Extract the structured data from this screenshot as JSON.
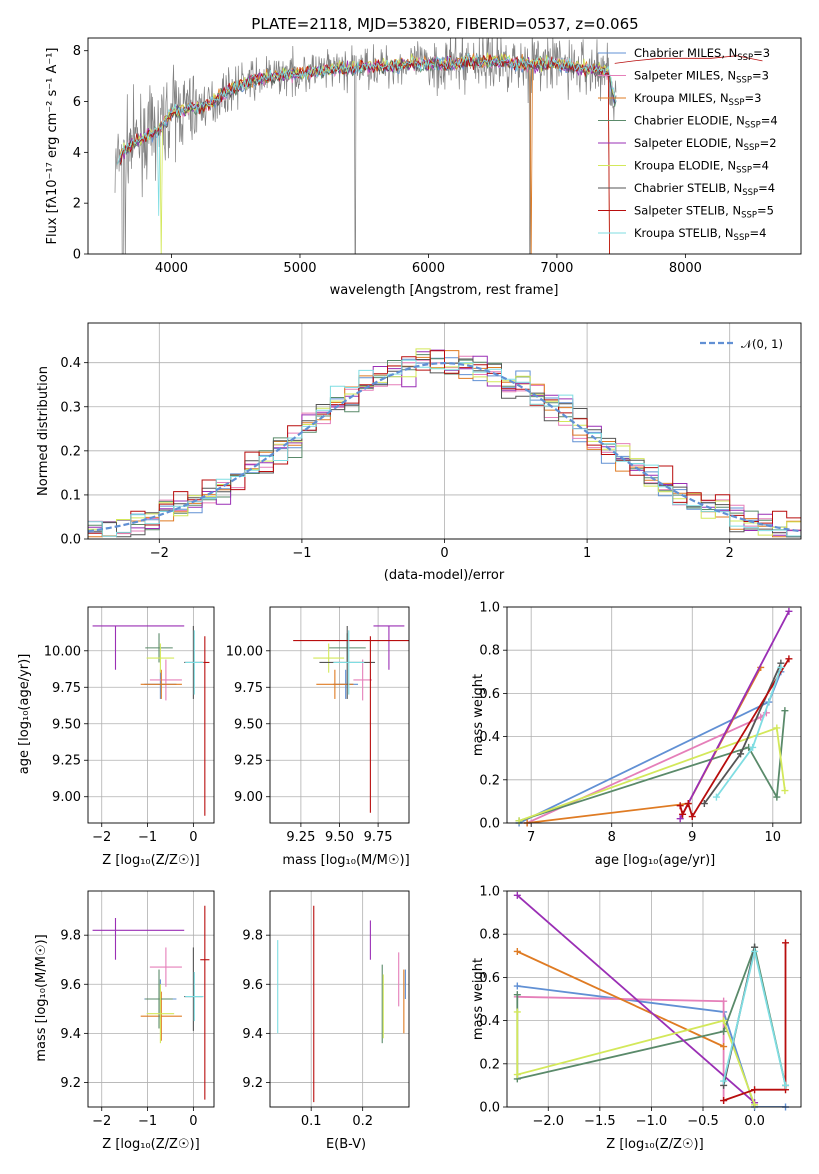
{
  "title": "PLATE=2118, MJD=53820, FIBERID=0537, z=0.065",
  "colors": [
    "#6190d4",
    "#e57fb9",
    "#df7b23",
    "#5a8a6a",
    "#9a2fb5",
    "#d3e85a",
    "#555555",
    "#b80d0d",
    "#7fdde2"
  ],
  "legend": [
    {
      "pre": "Chabrier MILES, N",
      "sub": "SSP",
      "post": "=3"
    },
    {
      "pre": "Salpeter MILES, N",
      "sub": "SSP",
      "post": "=3"
    },
    {
      "pre": "Kroupa MILES, N",
      "sub": "SSP",
      "post": "=3"
    },
    {
      "pre": "Chabrier ELODIE, N",
      "sub": "SSP",
      "post": "=4"
    },
    {
      "pre": "Salpeter ELODIE, N",
      "sub": "SSP",
      "post": "=2"
    },
    {
      "pre": "Kroupa ELODIE, N",
      "sub": "SSP",
      "post": "=4"
    },
    {
      "pre": "Chabrier STELIB, N",
      "sub": "SSP",
      "post": "=4"
    },
    {
      "pre": "Salpeter STELIB, N",
      "sub": "SSP",
      "post": "=5"
    },
    {
      "pre": "Kroupa STELIB, N",
      "sub": "SSP",
      "post": "=4"
    }
  ],
  "labels": {
    "p1_x": "wavelength [Angstrom, rest frame]",
    "p1_y": "Flux [fλ10⁻¹⁷ erg cm⁻² s⁻¹ A⁻¹]",
    "p2_x": "(data-model)/error",
    "p2_y": "Normed distribution",
    "p2_legend": "𝒩(0, 1)",
    "z_x": "Z [log₁₀(Z/Z☉)]",
    "age_y": "age  [log₁₀(age/yr)]",
    "mass_x": "mass [log₁₀(M/M☉)]",
    "age_x": "age  [log₁₀(age/yr)]",
    "mw_y": "mass weight",
    "mass_y": "mass [log₁₀(M/M☉)]",
    "ebv_x": "E(B-V)"
  },
  "chart_data": [
    {
      "id": "spectrum",
      "type": "line",
      "xlabel": "wavelength [Angstrom, rest frame]",
      "ylabel": "Flux [fλ10⁻¹⁷ erg cm⁻² s⁻¹ A⁻¹]",
      "xlim": [
        3350,
        8900
      ],
      "ylim": [
        0,
        8.5
      ],
      "xticks": [
        4000,
        5000,
        6000,
        7000,
        8000
      ],
      "yticks": [
        0,
        2,
        4,
        6,
        8
      ],
      "x": [
        3550,
        3600,
        3700,
        3800,
        3900,
        4000,
        4100,
        4200,
        4300,
        4400,
        4500,
        4600,
        4700,
        4800,
        4900,
        5000,
        5100,
        5200,
        5300,
        5400,
        5500,
        5600,
        5700,
        5800,
        5900,
        6000,
        6100,
        6200,
        6300,
        6400,
        6500,
        6600,
        6700,
        6800,
        6900,
        7000,
        7100,
        7200,
        7300,
        7400,
        7450
      ],
      "y": [
        3.0,
        3.9,
        4.4,
        4.6,
        4.9,
        5.6,
        5.7,
        5.8,
        5.9,
        6.3,
        6.6,
        6.8,
        6.9,
        7.0,
        7.1,
        7.1,
        7.2,
        7.2,
        7.3,
        7.3,
        7.4,
        7.4,
        7.4,
        7.5,
        7.5,
        7.5,
        7.5,
        7.5,
        7.6,
        7.6,
        7.6,
        7.6,
        7.5,
        7.5,
        7.5,
        7.5,
        7.4,
        7.3,
        7.3,
        7.2,
        6.0
      ],
      "continuum_x": [
        7450,
        7600,
        7800,
        8000,
        8200,
        8400,
        8600
      ],
      "continuum_y": [
        7.5,
        7.6,
        7.7,
        7.7,
        7.7,
        7.8,
        7.6
      ]
    },
    {
      "id": "residuals",
      "type": "bar",
      "xlabel": "(data-model)/error",
      "ylabel": "Normed distribution",
      "xlim": [
        -2.5,
        2.5
      ],
      "ylim": [
        0,
        0.49
      ],
      "xticks": [
        -2,
        -1,
        0,
        1,
        2
      ],
      "yticks": [
        0.0,
        0.1,
        0.2,
        0.3,
        0.4
      ],
      "bin_width": 0.1,
      "curve": "N(0,1)"
    },
    {
      "id": "age_vs_Z",
      "type": "scatter",
      "xlabel": "Z [log₁₀(Z/Z☉)]",
      "ylabel": "age  [log₁₀(age/yr)]",
      "xlim": [
        -2.3,
        0.45
      ],
      "ylim": [
        8.82,
        10.3
      ],
      "xticks": [
        -2,
        -1,
        0
      ],
      "yticks": [
        9.0,
        9.25,
        9.5,
        9.75,
        10.0
      ],
      "points": [
        {
          "x": -0.72,
          "y": 9.77,
          "xerr": [
            0.35,
            0.35
          ],
          "yerr": [
            0.1,
            0.1
          ],
          "c": 0
        },
        {
          "x": -0.6,
          "y": 9.8,
          "xerr": [
            0.35,
            0.35
          ],
          "yerr": [
            0.14,
            0.14
          ],
          "c": 1
        },
        {
          "x": -0.7,
          "y": 9.77,
          "xerr": [
            0.45,
            0.45
          ],
          "yerr": [
            0.1,
            0.1
          ],
          "c": 2
        },
        {
          "x": -0.75,
          "y": 10.02,
          "xerr": [
            0.3,
            0.3
          ],
          "yerr": [
            0.1,
            0.1
          ],
          "c": 3
        },
        {
          "x": -1.7,
          "y": 10.17,
          "xerr": [
            0.5,
            1.5
          ],
          "yerr": [
            0.3,
            0.0
          ],
          "c": 4
        },
        {
          "x": -0.72,
          "y": 9.95,
          "xerr": [
            0.3,
            0.3
          ],
          "yerr": [
            0.1,
            0.1
          ],
          "c": 5
        },
        {
          "x": 0.0,
          "y": 9.92,
          "xerr": [
            0.2,
            0.2
          ],
          "yerr": [
            0.25,
            0.25
          ],
          "c": 6
        },
        {
          "x": 0.25,
          "y": 9.92,
          "xerr": [
            0.1,
            0.1
          ],
          "yerr": [
            1.05,
            0.18
          ],
          "c": 7
        },
        {
          "x": 0.02,
          "y": 9.92,
          "xerr": [
            0.2,
            0.2
          ],
          "yerr": [
            0.22,
            0.22
          ],
          "c": 8
        }
      ]
    },
    {
      "id": "age_vs_mass",
      "type": "scatter",
      "xlabel": "mass [log₁₀(M/M☉)]",
      "ylabel": "",
      "xlim": [
        9.05,
        9.95
      ],
      "ylim": [
        8.82,
        10.3
      ],
      "xticks": [
        9.25,
        9.5,
        9.75
      ],
      "yticks": [
        9.0,
        9.25,
        9.5,
        9.75,
        10.0
      ],
      "points": [
        {
          "x": 9.54,
          "y": 9.77,
          "xerr": [
            0.08,
            0.08
          ],
          "yerr": [
            0.1,
            0.1
          ],
          "c": 0
        },
        {
          "x": 9.65,
          "y": 9.8,
          "xerr": [
            0.06,
            0.06
          ],
          "yerr": [
            0.14,
            0.14
          ],
          "c": 1
        },
        {
          "x": 9.47,
          "y": 9.77,
          "xerr": [
            0.12,
            0.12
          ],
          "yerr": [
            0.1,
            0.1
          ],
          "c": 2
        },
        {
          "x": 9.55,
          "y": 10.02,
          "xerr": [
            0.12,
            0.12
          ],
          "yerr": [
            0.1,
            0.1
          ],
          "c": 3
        },
        {
          "x": 9.82,
          "y": 10.17,
          "xerr": [
            0.1,
            0.1
          ],
          "yerr": [
            0.3,
            0.0
          ],
          "c": 4
        },
        {
          "x": 9.43,
          "y": 9.95,
          "xerr": [
            0.1,
            0.1
          ],
          "yerr": [
            0.1,
            0.1
          ],
          "c": 5
        },
        {
          "x": 9.55,
          "y": 9.92,
          "xerr": [
            0.18,
            0.18
          ],
          "yerr": [
            0.25,
            0.25
          ],
          "c": 6
        },
        {
          "x": 9.7,
          "y": 10.07,
          "xerr": [
            0.5,
            0.5
          ],
          "yerr": [
            1.18,
            0.03
          ],
          "c": 7
        },
        {
          "x": 9.56,
          "y": 9.92,
          "xerr": [
            0.1,
            0.1
          ],
          "yerr": [
            0.22,
            0.22
          ],
          "c": 8
        }
      ]
    },
    {
      "id": "massweight_vs_age",
      "type": "line",
      "xlabel": "age  [log₁₀(age/yr)]",
      "ylabel": "mass weight",
      "xlim": [
        6.7,
        10.35
      ],
      "ylim": [
        0,
        1.0
      ],
      "xticks": [
        7,
        8,
        9,
        10
      ],
      "yticks": [
        0.0,
        0.2,
        0.4,
        0.6,
        0.8,
        1.0
      ],
      "series": [
        {
          "c": 0,
          "x": [
            6.85,
            9.95,
            10.1
          ],
          "y": [
            0.0,
            0.56,
            0.7
          ]
        },
        {
          "c": 1,
          "x": [
            6.95,
            9.85,
            9.92
          ],
          "y": [
            0.0,
            0.49,
            0.51
          ]
        },
        {
          "c": 2,
          "x": [
            6.95,
            8.95,
            9.85
          ],
          "y": [
            0.0,
            0.09,
            0.72
          ]
        },
        {
          "c": 3,
          "x": [
            6.85,
            9.7,
            10.05,
            10.15
          ],
          "y": [
            0.01,
            0.35,
            0.12,
            0.52
          ]
        },
        {
          "c": 4,
          "x": [
            8.85,
            10.2
          ],
          "y": [
            0.02,
            0.98
          ]
        },
        {
          "c": 5,
          "x": [
            6.85,
            10.05,
            10.15
          ],
          "y": [
            0.01,
            0.44,
            0.15
          ]
        },
        {
          "c": 6,
          "x": [
            9.15,
            9.6,
            10.1
          ],
          "y": [
            0.09,
            0.32,
            0.74
          ]
        },
        {
          "c": 7,
          "x": [
            8.85,
            8.88,
            8.95,
            9.0,
            10.2
          ],
          "y": [
            0.08,
            0.04,
            0.09,
            0.03,
            0.76
          ]
        },
        {
          "c": 8,
          "x": [
            9.3,
            9.75,
            10.1
          ],
          "y": [
            0.12,
            0.35,
            0.72
          ]
        }
      ]
    },
    {
      "id": "mass_vs_Z",
      "type": "scatter",
      "xlabel": "Z [log₁₀(Z/Z☉)]",
      "ylabel": "mass [log₁₀(M/M☉)]",
      "xlim": [
        -2.3,
        0.45
      ],
      "ylim": [
        9.1,
        9.98
      ],
      "xticks": [
        -2,
        -1,
        0
      ],
      "yticks": [
        9.2,
        9.4,
        9.6,
        9.8
      ],
      "points": [
        {
          "x": -0.72,
          "y": 9.54,
          "xerr": [
            0.35,
            0.35
          ],
          "yerr": [
            0.08,
            0.08
          ],
          "c": 0
        },
        {
          "x": -0.6,
          "y": 9.67,
          "xerr": [
            0.35,
            0.35
          ],
          "yerr": [
            0.08,
            0.08
          ],
          "c": 1
        },
        {
          "x": -0.7,
          "y": 9.47,
          "xerr": [
            0.45,
            0.45
          ],
          "yerr": [
            0.1,
            0.1
          ],
          "c": 2
        },
        {
          "x": -0.75,
          "y": 9.54,
          "xerr": [
            0.3,
            0.3
          ],
          "yerr": [
            0.12,
            0.12
          ],
          "c": 3
        },
        {
          "x": -1.7,
          "y": 9.82,
          "xerr": [
            0.5,
            1.5
          ],
          "yerr": [
            0.12,
            0.05
          ],
          "c": 4
        },
        {
          "x": -0.72,
          "y": 9.48,
          "xerr": [
            0.3,
            0.3
          ],
          "yerr": [
            0.12,
            0.12
          ],
          "c": 5
        },
        {
          "x": 0.0,
          "y": 9.55,
          "xerr": [
            0.2,
            0.2
          ],
          "yerr": [
            0.14,
            0.2
          ],
          "c": 6
        },
        {
          "x": 0.25,
          "y": 9.7,
          "xerr": [
            0.1,
            0.1
          ],
          "yerr": [
            0.57,
            0.22
          ],
          "c": 7
        },
        {
          "x": 0.02,
          "y": 9.55,
          "xerr": [
            0.2,
            0.2
          ],
          "yerr": [
            0.1,
            0.1
          ],
          "c": 8
        }
      ]
    },
    {
      "id": "mass_vs_ebv",
      "type": "scatter",
      "xlabel": "E(B-V)",
      "ylabel": "",
      "xlim": [
        0.02,
        0.29
      ],
      "ylim": [
        9.1,
        9.98
      ],
      "xticks": [
        0.1,
        0.2
      ],
      "yticks": [
        9.2,
        9.4,
        9.6,
        9.8
      ],
      "points": [
        {
          "x": 0.035,
          "y": 9.6,
          "yerr": [
            0.2,
            0.18
          ],
          "c": 8
        },
        {
          "x": 0.105,
          "y": 9.52,
          "yerr": [
            0.4,
            0.4
          ],
          "c": 7
        },
        {
          "x": 0.215,
          "y": 9.78,
          "yerr": [
            0.08,
            0.08
          ],
          "c": 4
        },
        {
          "x": 0.238,
          "y": 9.52,
          "yerr": [
            0.16,
            0.16
          ],
          "c": 3
        },
        {
          "x": 0.24,
          "y": 9.51,
          "yerr": [
            0.13,
            0.13
          ],
          "c": 5
        },
        {
          "x": 0.27,
          "y": 9.62,
          "yerr": [
            0.11,
            0.11
          ],
          "c": 1
        },
        {
          "x": 0.28,
          "y": 9.53,
          "yerr": [
            0.13,
            0.13
          ],
          "c": 2
        },
        {
          "x": 0.283,
          "y": 9.6,
          "yerr": [
            0.06,
            0.06
          ],
          "c": 0
        }
      ]
    },
    {
      "id": "massweight_vs_Z",
      "type": "line",
      "xlabel": "Z [log₁₀(Z/Z☉)]",
      "ylabel": "mass weight",
      "xlim": [
        -2.4,
        0.45
      ],
      "ylim": [
        0,
        1.0
      ],
      "xticks": [
        -2.0,
        -1.5,
        -1.0,
        -0.5,
        0.0
      ],
      "yticks": [
        0.0,
        0.2,
        0.4,
        0.6,
        0.8,
        1.0
      ],
      "series": [
        {
          "c": 0,
          "x": [
            -2.3,
            -0.3,
            0.0,
            0.3
          ],
          "y": [
            0.56,
            0.44,
            0.0,
            0.0
          ]
        },
        {
          "c": 1,
          "x": [
            -2.3,
            -0.3,
            -0.3
          ],
          "y": [
            0.51,
            0.49,
            0.03
          ]
        },
        {
          "c": 2,
          "x": [
            -2.3,
            -0.3
          ],
          "y": [
            0.72,
            0.28
          ]
        },
        {
          "c": 3,
          "x": [
            -2.3,
            -2.3,
            -0.3,
            0.0,
            0.3
          ],
          "y": [
            0.52,
            0.13,
            0.35,
            0.74,
            0.1
          ]
        },
        {
          "c": 4,
          "x": [
            -2.3,
            0.0
          ],
          "y": [
            0.98,
            0.02
          ]
        },
        {
          "c": 5,
          "x": [
            -2.3,
            -2.3,
            -0.3,
            0.0
          ],
          "y": [
            0.44,
            0.15,
            0.4,
            0.01
          ]
        },
        {
          "c": 6,
          "x": [
            -0.3,
            0.0
          ],
          "y": [
            0.1,
            0.74
          ]
        },
        {
          "c": 7,
          "x": [
            -0.3,
            0.0,
            0.3,
            0.3
          ],
          "y": [
            0.03,
            0.08,
            0.08,
            0.76
          ]
        },
        {
          "c": 8,
          "x": [
            -0.3,
            0.0,
            0.3
          ],
          "y": [
            0.12,
            0.72,
            0.1
          ]
        }
      ]
    }
  ]
}
